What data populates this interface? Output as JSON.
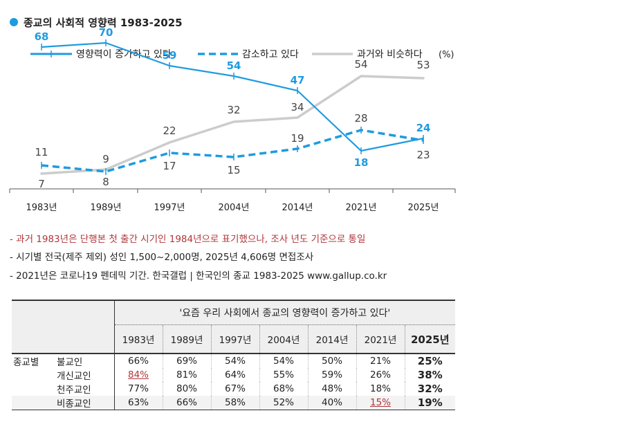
{
  "title": "종교의 사회적 영향력 1983-2025",
  "colors": {
    "increase": "#1e9be0",
    "decrease": "#1e9be0",
    "similar": "#cccccc",
    "accent_red": "#b0353a"
  },
  "chart_data": {
    "type": "line",
    "title": "종교의 사회적 영향력 1983-2025",
    "categories": [
      "1983년",
      "1989년",
      "1997년",
      "2004년",
      "2014년",
      "2021년",
      "2025년"
    ],
    "series": [
      {
        "name": "영향력이 증가하고 있다",
        "style": "solid",
        "values": [
          68,
          70,
          59,
          54,
          47,
          18,
          24
        ]
      },
      {
        "name": "감소하고 있다",
        "style": "dashed",
        "values": [
          11,
          8,
          17,
          15,
          19,
          28,
          23
        ]
      },
      {
        "name": "과거와 비슷하다",
        "style": "gray",
        "values": [
          7,
          9,
          22,
          32,
          34,
          54,
          53
        ]
      }
    ],
    "unit_label": "(%)",
    "ylim": [
      0,
      80
    ],
    "legend_position": "top"
  },
  "notes": [
    "- 과거 1983년은 단행본 첫 출간 시기인 1984년으로 표기했으나, 조사 년도 기준으로 통일",
    "- 시기별 전국(제주 제외) 성인 1,500~2,000명, 2025년 4,606명 면접조사",
    "- 2021년은 코로나19 펜데믹 기간. 한국갤럽 | 한국인의 종교 1983-2025 www.gallup.co.kr"
  ],
  "table": {
    "header_title": "'요즘 우리 사회에서 종교의 영향력이 증가하고 있다'",
    "years": [
      "1983년",
      "1989년",
      "1997년",
      "2004년",
      "2014년",
      "2021년",
      "2025년"
    ],
    "group_label": "종교별",
    "rows": [
      {
        "label": "불교인",
        "values": [
          "66%",
          "69%",
          "54%",
          "54%",
          "50%",
          "21%",
          "25%"
        ]
      },
      {
        "label": "개신교인",
        "values": [
          "84%",
          "81%",
          "64%",
          "55%",
          "59%",
          "26%",
          "38%"
        ]
      },
      {
        "label": "천주교인",
        "values": [
          "77%",
          "80%",
          "67%",
          "68%",
          "48%",
          "18%",
          "32%"
        ]
      },
      {
        "label": "비종교인",
        "values": [
          "63%",
          "66%",
          "58%",
          "52%",
          "40%",
          "15%",
          "19%"
        ]
      }
    ]
  }
}
